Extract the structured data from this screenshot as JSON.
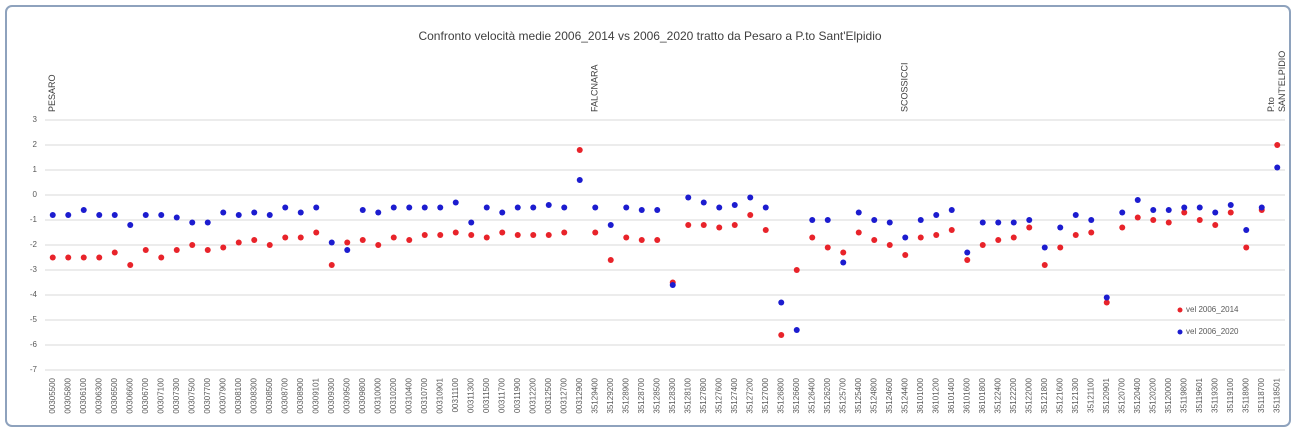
{
  "chart_data": {
    "type": "scatter",
    "title": "Confronto velocità medie 2006_2014 vs 2006_2020 tratto da Pesaro a P.to Sant'Elpidio",
    "categories": [
      "00305500",
      "00305800",
      "00306100",
      "00306300",
      "00306500",
      "00306600",
      "00306700",
      "00307100",
      "00307300",
      "00307500",
      "00307700",
      "00307900",
      "00308100",
      "00308300",
      "00308500",
      "00308700",
      "00308900",
      "00309101",
      "00309300",
      "00309500",
      "00309800",
      "00310000",
      "00310200",
      "00310400",
      "00310700",
      "00310901",
      "00311100",
      "00311300",
      "00311500",
      "00311700",
      "00311900",
      "00312200",
      "00312500",
      "00312700",
      "00312900",
      "35129400",
      "35129200",
      "35128900",
      "35128700",
      "35128500",
      "35128300",
      "35128100",
      "35127800",
      "35127600",
      "35127400",
      "35127200",
      "35127000",
      "35126800",
      "35126600",
      "35126400",
      "35126200",
      "35125700",
      "35125400",
      "35124800",
      "35124600",
      "35124400",
      "36101000",
      "36101200",
      "36101400",
      "36101600",
      "36101800",
      "35122400",
      "35122200",
      "35122000",
      "35121800",
      "35121600",
      "35121300",
      "35121100",
      "35120901",
      "35120700",
      "35120400",
      "35120200",
      "35120000",
      "35119800",
      "35119601",
      "35119300",
      "35119100",
      "35118900",
      "35118700",
      "35118501"
    ],
    "series": [
      {
        "name": "vel 2006_2014",
        "color": "#e8232a",
        "values": [
          -2.5,
          -2.5,
          -2.5,
          -2.5,
          -2.3,
          -2.8,
          -2.2,
          -2.5,
          -2.2,
          -2.0,
          -2.2,
          -2.1,
          -1.9,
          -1.8,
          -2.0,
          -1.7,
          -1.7,
          -1.5,
          -2.8,
          -1.9,
          -1.8,
          -2.0,
          -1.7,
          -1.8,
          -1.6,
          -1.6,
          -1.5,
          -1.6,
          -1.7,
          -1.5,
          -1.6,
          -1.6,
          -1.6,
          -1.5,
          1.8,
          -1.5,
          -2.6,
          -1.7,
          -1.8,
          -1.8,
          -3.5,
          -1.2,
          -1.2,
          -1.3,
          -1.2,
          -0.8,
          -1.4,
          -5.6,
          -3.0,
          -1.7,
          -2.1,
          -2.3,
          -1.5,
          -1.8,
          -2.0,
          -2.4,
          -1.7,
          -1.6,
          -1.4,
          -2.6,
          -2.0,
          -1.8,
          -1.7,
          -1.3,
          -2.8,
          -2.1,
          -1.6,
          -1.5,
          -4.3,
          -1.3,
          -0.9,
          -1.0,
          -1.1,
          -0.7,
          -1.0,
          -1.2,
          -0.7,
          -2.1,
          -0.6,
          2.0
        ]
      },
      {
        "name": "vel 2006_2020",
        "color": "#1c1ccf",
        "values": [
          -0.8,
          -0.8,
          -0.6,
          -0.8,
          -0.8,
          -1.2,
          -0.8,
          -0.8,
          -0.9,
          -1.1,
          -1.1,
          -0.7,
          -0.8,
          -0.7,
          -0.8,
          -0.5,
          -0.7,
          -0.5,
          -1.9,
          -2.2,
          -0.6,
          -0.7,
          -0.5,
          -0.5,
          -0.5,
          -0.5,
          -0.3,
          -1.1,
          -0.5,
          -0.7,
          -0.5,
          -0.5,
          -0.4,
          -0.5,
          0.6,
          -0.5,
          -1.2,
          -0.5,
          -0.6,
          -0.6,
          -3.6,
          -0.1,
          -0.3,
          -0.5,
          -0.4,
          -0.1,
          -0.5,
          -4.3,
          -5.4,
          -1.0,
          -1.0,
          -2.7,
          -0.7,
          -1.0,
          -1.1,
          -1.7,
          -1.0,
          -0.8,
          -0.6,
          -2.3,
          -1.1,
          -1.1,
          -1.1,
          -1.0,
          -2.1,
          -1.3,
          -0.8,
          -1.0,
          -4.1,
          -0.7,
          -0.2,
          -0.6,
          -0.6,
          -0.5,
          -0.5,
          -0.7,
          -0.4,
          -1.4,
          -0.5,
          1.1
        ]
      }
    ],
    "ylim": [
      -7,
      3
    ],
    "yticks": [
      -7,
      -6,
      -5,
      -4,
      -3,
      -2,
      -1,
      0,
      1,
      2,
      3
    ],
    "grid": true,
    "legend": "lower right",
    "annotations": [
      {
        "at": "00305500",
        "lines": [
          "PESARO"
        ]
      },
      {
        "at": "35129400",
        "lines": [
          "FALCNARA"
        ]
      },
      {
        "at": "35124400",
        "lines": [
          "SCOSSICCI"
        ]
      },
      {
        "at": "35118501",
        "lines": [
          "P.to",
          "SANT'ELPIDIO"
        ]
      }
    ]
  }
}
